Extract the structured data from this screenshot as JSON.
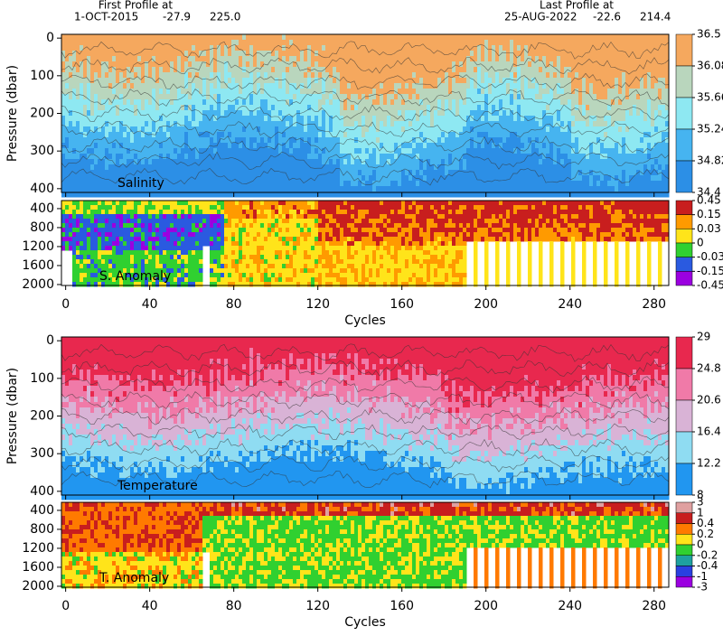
{
  "header": {
    "first_label": "First Profile at",
    "first_date": "1-OCT-2015",
    "first_lat": "-27.9",
    "first_lon": "225.0",
    "last_label": "Last Profile at",
    "last_date": "25-AUG-2022",
    "last_lat": "-22.6",
    "last_lon": "214.4"
  },
  "chart_data": [
    {
      "type": "contour",
      "title": "Salinity",
      "ylabel": "Pressure (dbar)",
      "y_inverted": true,
      "xlim": [
        -2,
        287
      ],
      "xticks": [
        0,
        40,
        80,
        120,
        160,
        200,
        240,
        280
      ],
      "ylim": [
        -10,
        410
      ],
      "yticks": [
        0,
        100,
        200,
        300,
        400
      ],
      "colorbar": {
        "ticks": [
          36.5,
          36.08,
          35.66,
          35.24,
          34.82,
          34.4
        ],
        "colors": [
          "#f5a85e",
          "#b9d6bd",
          "#8ee8f2",
          "#46b4f0",
          "#2c8fe6"
        ]
      }
    },
    {
      "type": "anomaly",
      "title": "S. Anomaly",
      "xlabel": "Cycles",
      "y_inverted": true,
      "xlim": [
        -2,
        287
      ],
      "xticks": [
        0,
        40,
        80,
        120,
        160,
        200,
        240,
        280
      ],
      "ylim": [
        230,
        2020
      ],
      "yticks": [
        400,
        800,
        1200,
        1600,
        2000
      ],
      "colorbar": {
        "ticks": [
          0.45,
          0.15,
          0.03,
          0,
          -0.03,
          -0.15,
          -0.45
        ],
        "colors": [
          "#c81e1e",
          "#ff9a00",
          "#ffe41a",
          "#30d030",
          "#2a5ae0",
          "#9b00e0"
        ]
      }
    },
    {
      "type": "contour",
      "title": "Temperature",
      "ylabel": "Pressure (dbar)",
      "y_inverted": true,
      "xlim": [
        -2,
        287
      ],
      "xticks": [
        0,
        40,
        80,
        120,
        160,
        200,
        240,
        280
      ],
      "ylim": [
        -10,
        410
      ],
      "yticks": [
        0,
        100,
        200,
        300,
        400
      ],
      "colorbar": {
        "ticks": [
          29,
          24.8,
          20.6,
          16.4,
          12.2,
          8
        ],
        "colors": [
          "#e8284e",
          "#f07aa8",
          "#d9b3d6",
          "#8fdcf2",
          "#2196f0"
        ]
      }
    },
    {
      "type": "anomaly",
      "title": "T. Anomaly",
      "xlabel": "Cycles",
      "y_inverted": true,
      "xlim": [
        -2,
        287
      ],
      "xticks": [
        0,
        40,
        80,
        120,
        160,
        200,
        240,
        280
      ],
      "ylim": [
        230,
        2020
      ],
      "yticks": [
        400,
        800,
        1200,
        1600,
        2000
      ],
      "colorbar": {
        "ticks": [
          3,
          1,
          0.4,
          0.2,
          0,
          -0.2,
          -0.4,
          -1,
          -3
        ],
        "colors": [
          "#e0a0a0",
          "#c81e1e",
          "#ff7a00",
          "#ffe41a",
          "#30d030",
          "#1ea0a0",
          "#2a40e0",
          "#9b00e0"
        ]
      }
    }
  ]
}
